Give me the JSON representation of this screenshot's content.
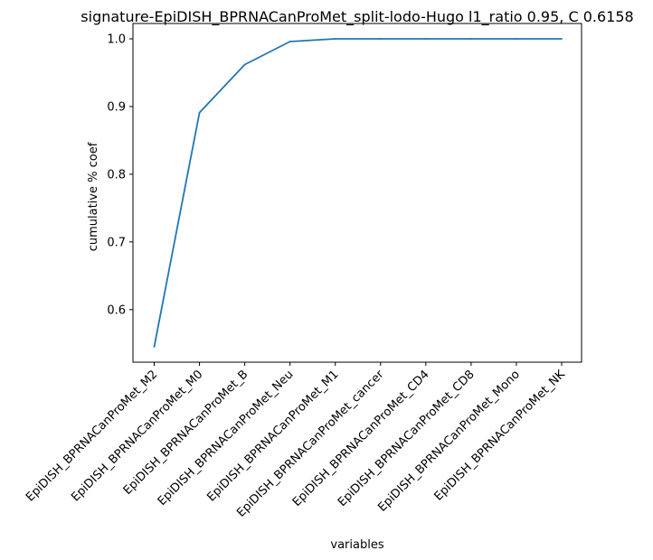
{
  "chart_data": {
    "type": "line",
    "title": "signature-EpiDISH_BPRNACanProMet_split-lodo-Hugo l1_ratio 0.95, C 0.6158",
    "xlabel": "variables",
    "ylabel": "cumulative % coef",
    "categories": [
      "EpiDISH_BPRNACanProMet_M2",
      "EpiDISH_BPRNACanProMet_M0",
      "EpiDISH_BPRNACanProMet_B",
      "EpiDISH_BPRNACanProMet_Neu",
      "EpiDISH_BPRNACanProMet_M1",
      "EpiDISH_BPRNACanProMet_cancer",
      "EpiDISH_BPRNACanProMet_CD4",
      "EpiDISH_BPRNACanProMet_CD8",
      "EpiDISH_BPRNACanProMet_Mono",
      "EpiDISH_BPRNACanProMet_NK"
    ],
    "series": [
      {
        "values": [
          0.545,
          0.891,
          0.962,
          0.996,
          1.0,
          1.0,
          1.0,
          1.0,
          1.0,
          1.0
        ],
        "color": "#1f77b4"
      }
    ],
    "yticks": [
      0.6,
      0.7,
      0.8,
      0.9,
      1.0
    ],
    "ytick_labels": [
      "0.6",
      "0.7",
      "0.8",
      "0.9",
      "1.0"
    ],
    "ylim": [
      0.5223,
      1.0227
    ],
    "grid": false,
    "legend": "none"
  }
}
